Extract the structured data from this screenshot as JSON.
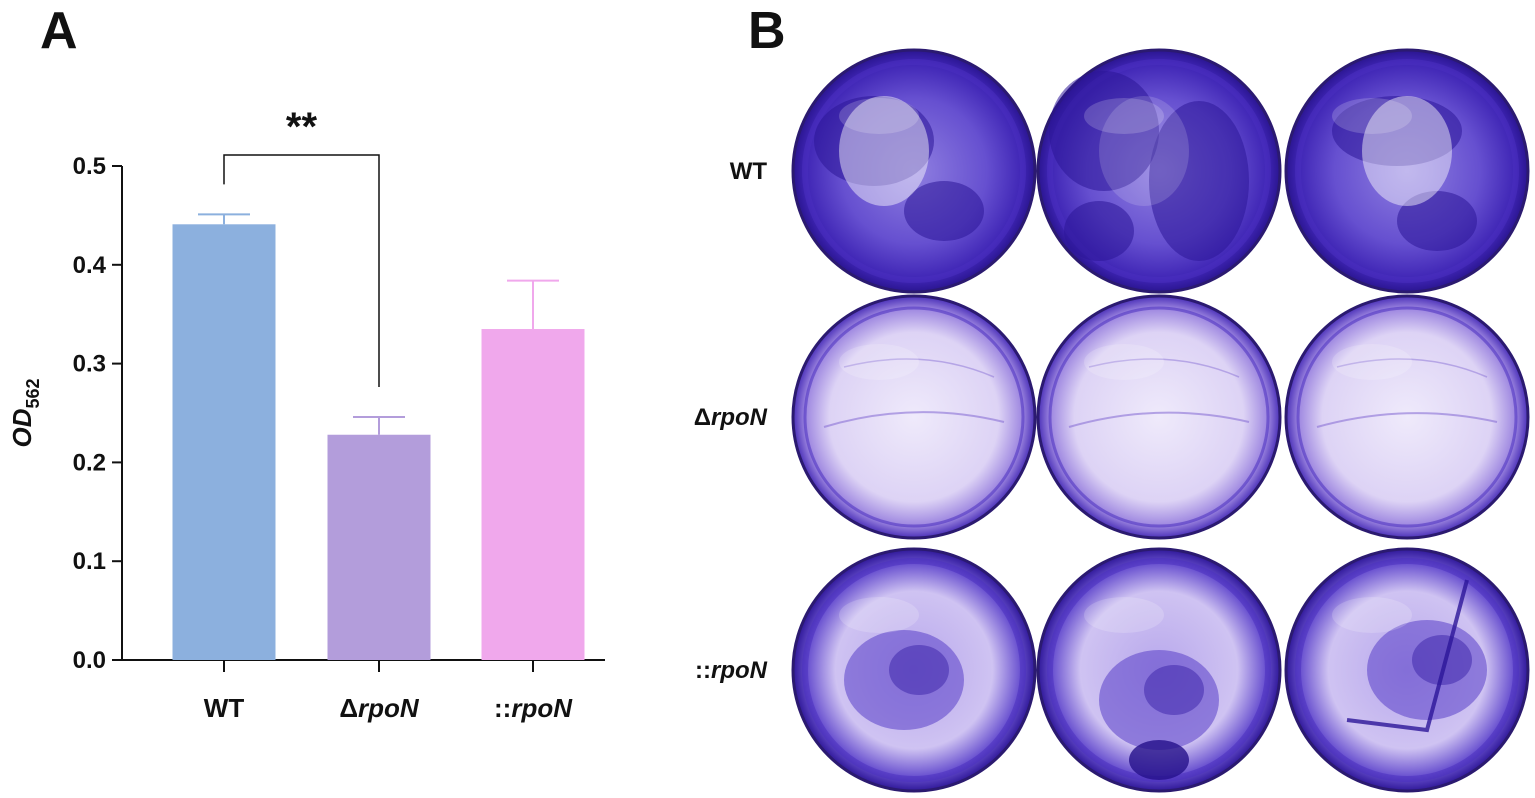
{
  "panels": {
    "a_label": "A",
    "b_label": "B"
  },
  "chart_data": {
    "type": "bar",
    "categories": [
      {
        "prefix": "",
        "text": "WT"
      },
      {
        "prefix": "Δ",
        "text": "rpoN"
      },
      {
        "prefix": "::",
        "text": "rpoN"
      }
    ],
    "values": [
      0.441,
      0.228,
      0.335
    ],
    "errors": [
      0.01,
      0.018,
      0.049
    ],
    "colors": [
      "#8cb0de",
      "#b39ddb",
      "#f0a8ec"
    ],
    "error_colors": [
      "#8cb0de",
      "#b39ddb",
      "#f0a8ec"
    ],
    "ylabel": "OD",
    "ylabel_sub": "562",
    "ylim": [
      0,
      0.5
    ],
    "yticks": [
      "0.0",
      "0.1",
      "0.2",
      "0.3",
      "0.4",
      "0.5"
    ],
    "ytick_values": [
      0,
      0.1,
      0.2,
      0.3,
      0.4,
      0.5
    ],
    "significance": {
      "from": 0,
      "to": 1,
      "label": "**"
    },
    "grid": false
  },
  "plate": {
    "rows": [
      {
        "prefix": "",
        "text": "WT",
        "style": "dense"
      },
      {
        "prefix": "Δ",
        "text": "rpoN",
        "style": "light"
      },
      {
        "prefix": "::",
        "text": "rpoN",
        "style": "medium"
      }
    ],
    "wells_per_row": 3,
    "stain_color": "#4a2fc0"
  }
}
